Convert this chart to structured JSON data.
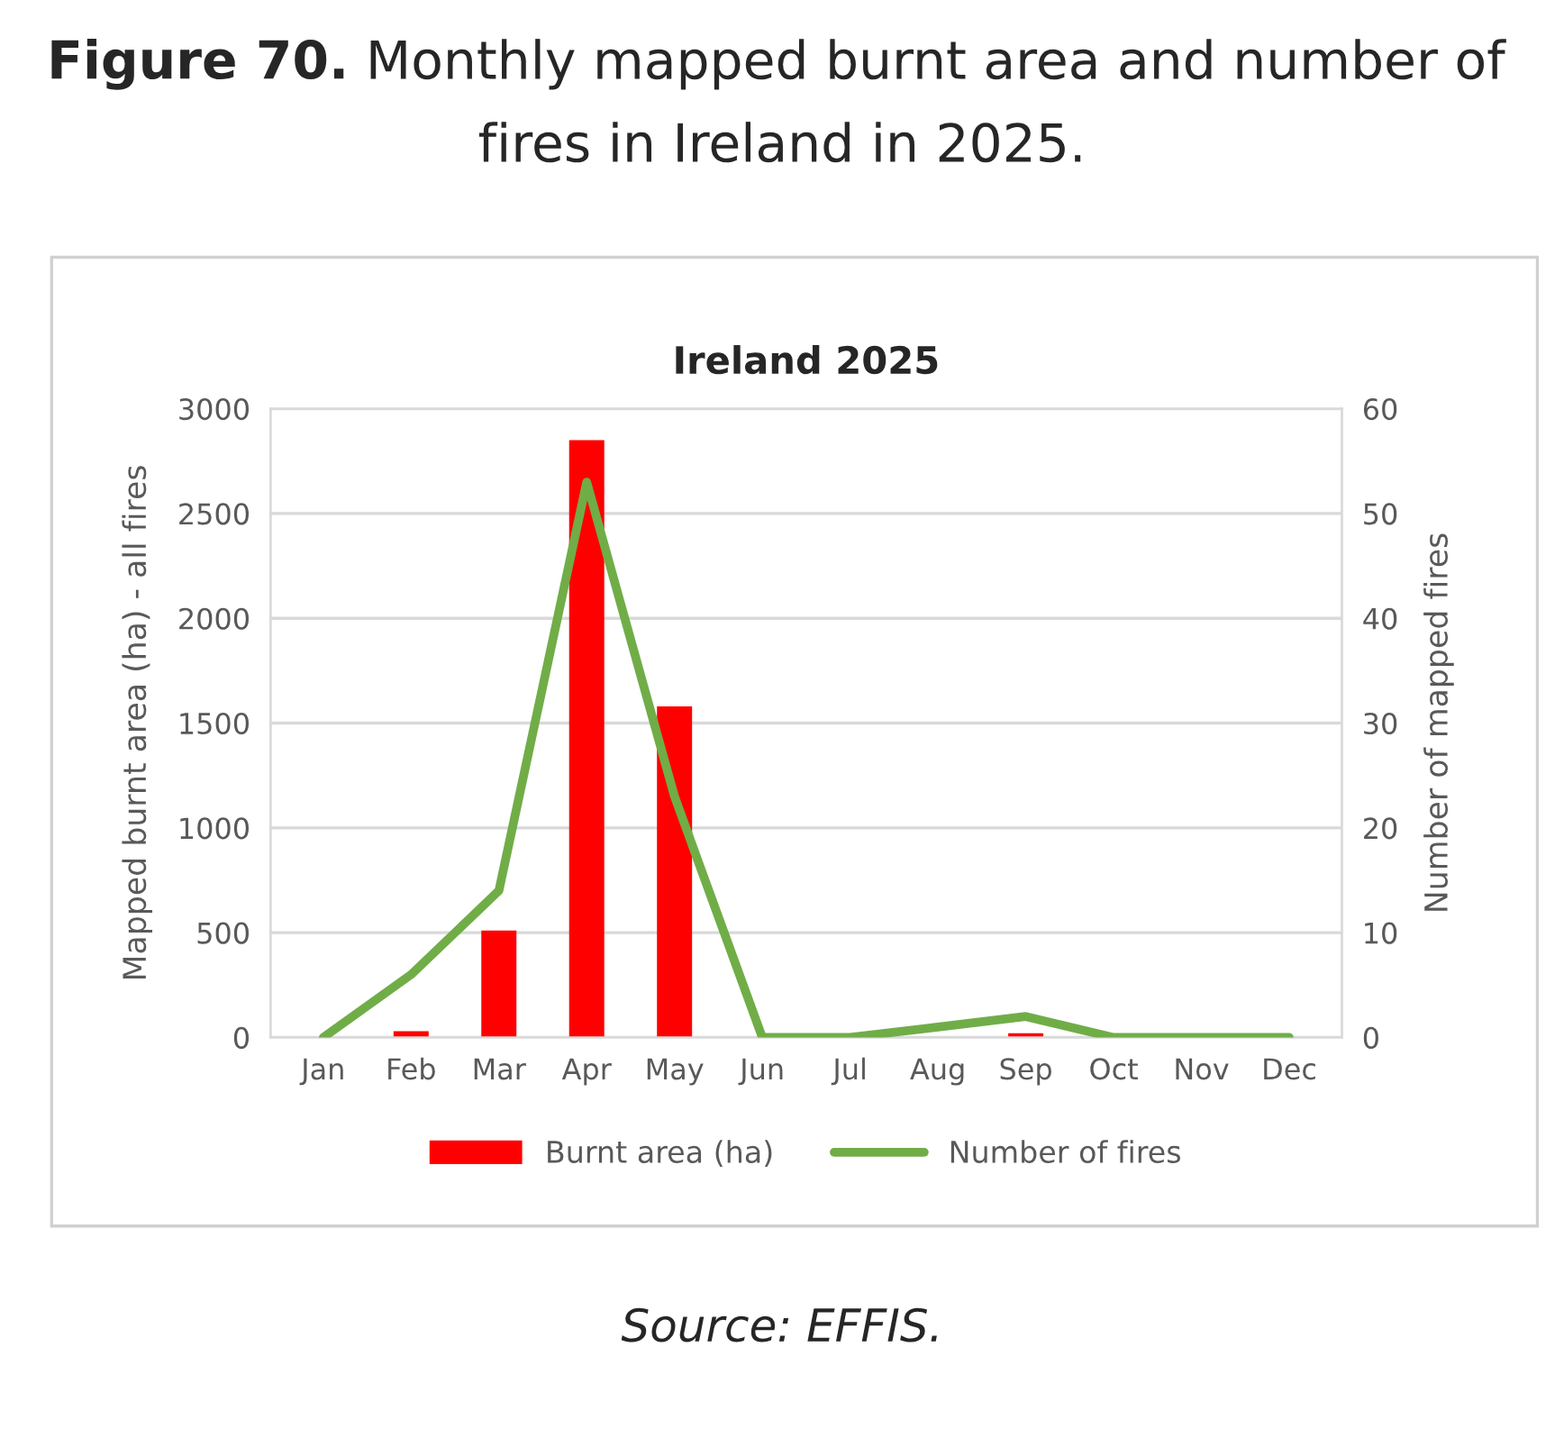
{
  "chart_data": {
    "type": "bar",
    "title": "Ireland 2025",
    "subtitle": "**Figure 70.** Monthly mapped burnt area and number of fires in Ireland in 2025.",
    "ylabel": "Mapped burnt area (ha) - all fires",
    "y2label": "Number of mapped fires",
    "categories": [
      "Jan",
      "Feb",
      "Mar",
      "Apr",
      "May",
      "Jun",
      "Jul",
      "Aug",
      "Sep",
      "Oct",
      "Nov",
      "Dec"
    ],
    "series": [
      {
        "name": "Burnt area (ha)",
        "color": "#ff0000",
        "values": [
          0,
          30,
          510,
          2850,
          1580,
          0,
          0,
          0,
          20,
          0,
          0,
          0
        ]
      },
      {
        "name": "Number of fires",
        "type": "line",
        "axis": "y2",
        "color": "#70ad47",
        "values": [
          0,
          6,
          14,
          53,
          23,
          0,
          0,
          1,
          2,
          0,
          0,
          0
        ]
      }
    ],
    "ylim": [
      0,
      3000
    ],
    "yticks": [
      0,
      500,
      1000,
      1500,
      2000,
      2500,
      3000
    ],
    "y2lim": [
      0,
      60
    ],
    "y2ticks": [
      0,
      10,
      20,
      30,
      40,
      50,
      60
    ],
    "grid": "y",
    "legend": "bottom",
    "marker": "none",
    "line_style": "solid",
    "annotations": [
      "Source: EFFIS."
    ]
  }
}
